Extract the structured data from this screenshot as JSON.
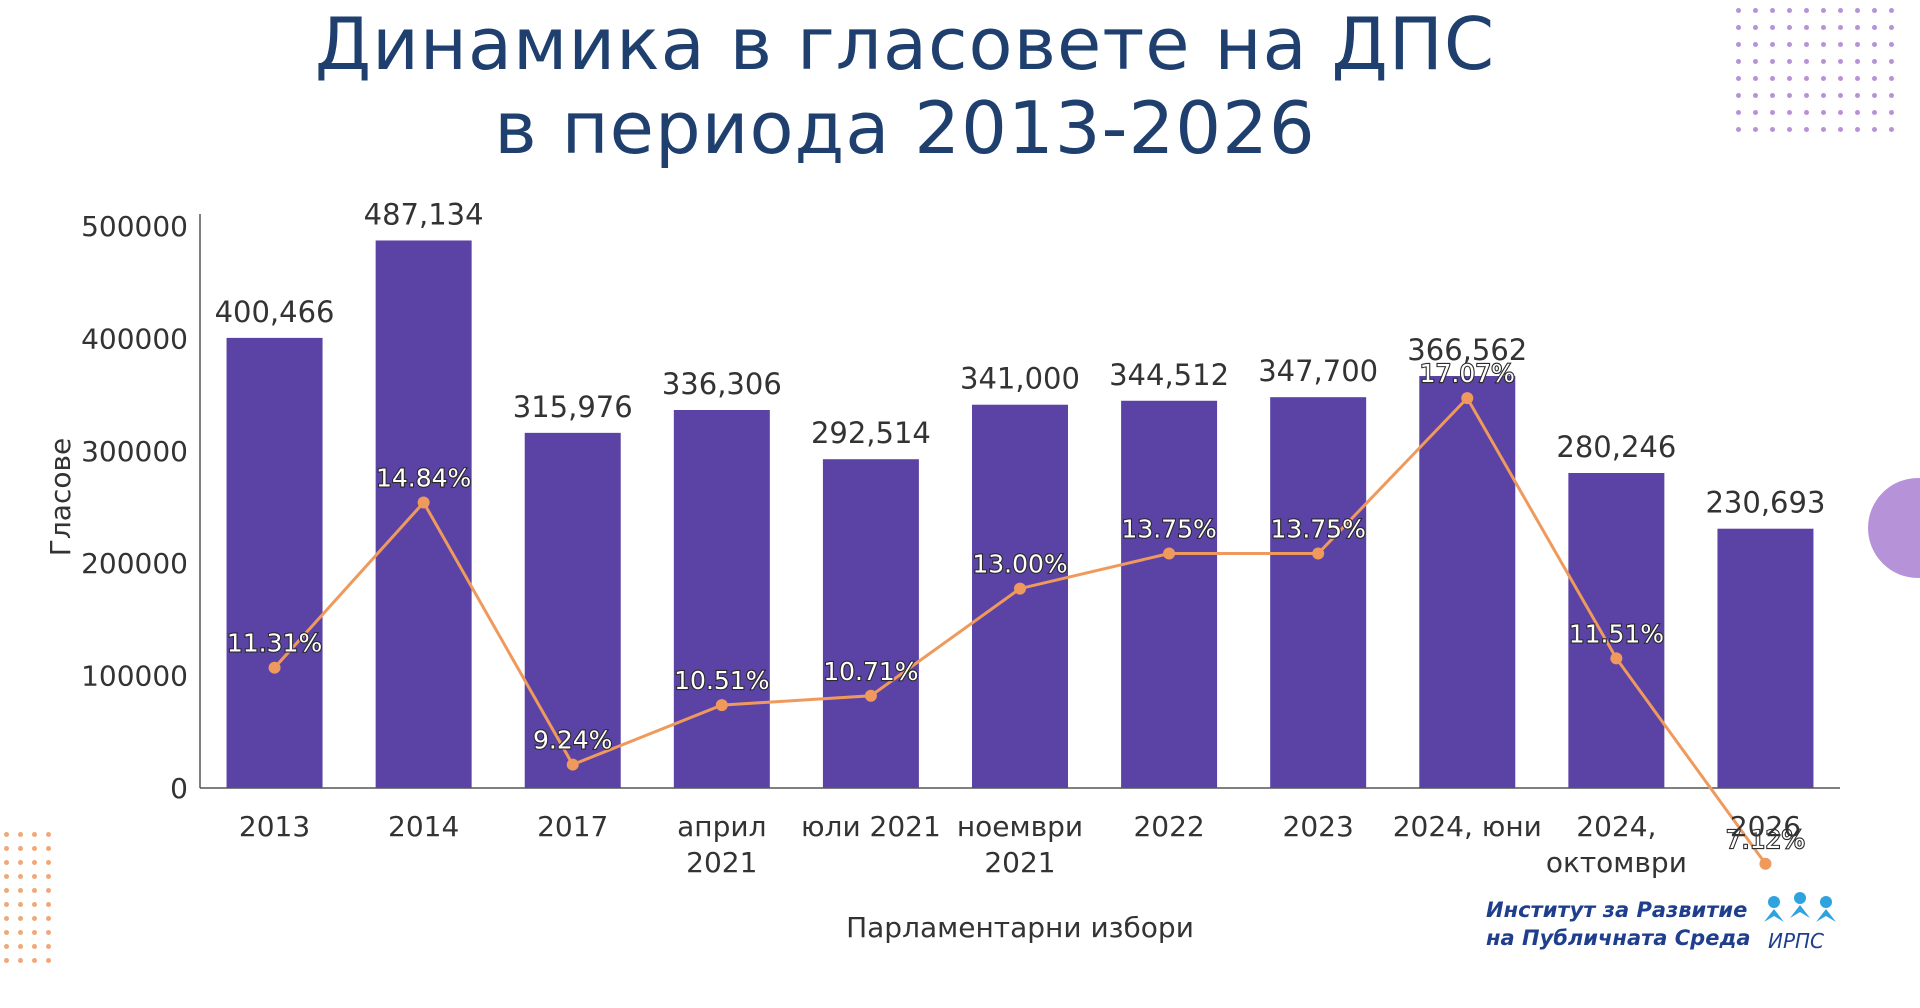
{
  "title": {
    "line1": "Динамика в гласовете на ДПС",
    "line2": "в периода 2013-2026"
  },
  "logo": {
    "line1": "Институт за Развитие",
    "line2": "на Публичната Среда",
    "abbr": "ИРПС"
  },
  "colors": {
    "title": "#1f3f6e",
    "bar": "#5b43a6",
    "line": "#ef9a5c",
    "axis_text": "#333333",
    "deco_purple": "#b693d9",
    "deco_orange": "#f0a77a"
  },
  "chart_data": {
    "type": "bar",
    "categories": [
      "2013",
      "2014",
      "2017",
      "април 2021",
      "юли 2021",
      "ноември 2021",
      "2022",
      "2023",
      "2024, юни",
      "2024, октомври",
      "2026"
    ],
    "category_lines": [
      [
        "2013"
      ],
      [
        "2014"
      ],
      [
        "2017"
      ],
      [
        "април",
        "2021"
      ],
      [
        "юли 2021"
      ],
      [
        "ноември",
        "2021"
      ],
      [
        "2022"
      ],
      [
        "2023"
      ],
      [
        "2024, юни"
      ],
      [
        "2024,",
        "октомври"
      ],
      [
        "2026"
      ]
    ],
    "series": [
      {
        "type": "bar",
        "values": [
          400466,
          487134,
          315976,
          336306,
          292514,
          341000,
          344512,
          347700,
          366562,
          280246,
          230693
        ],
        "labels": [
          "400,466",
          "487,134",
          "315,976",
          "336,306",
          "292,514",
          "341,000",
          "344,512",
          "347,700",
          "366,562",
          "280,246",
          "230,693"
        ]
      },
      {
        "type": "line",
        "values": [
          11.31,
          14.84,
          9.24,
          10.51,
          10.71,
          13.0,
          13.75,
          13.75,
          17.07,
          11.51,
          7.12
        ],
        "labels": [
          "11.31%",
          "14.84%",
          "9.24%",
          "10.51%",
          "10.71%",
          "13.00%",
          "13.75%",
          "13.75%",
          "17.07%",
          "11.51%",
          "7.12%"
        ]
      }
    ],
    "xlabel": "Парламентарни избори",
    "ylabel": "Гласове",
    "ylim": [
      0,
      500000
    ],
    "yticks": [
      0,
      100000,
      200000,
      300000,
      400000,
      500000
    ],
    "ytick_labels": [
      "0",
      "100000",
      "200000",
      "300000",
      "400000",
      "500000"
    ],
    "grid": false,
    "legend": "none"
  }
}
